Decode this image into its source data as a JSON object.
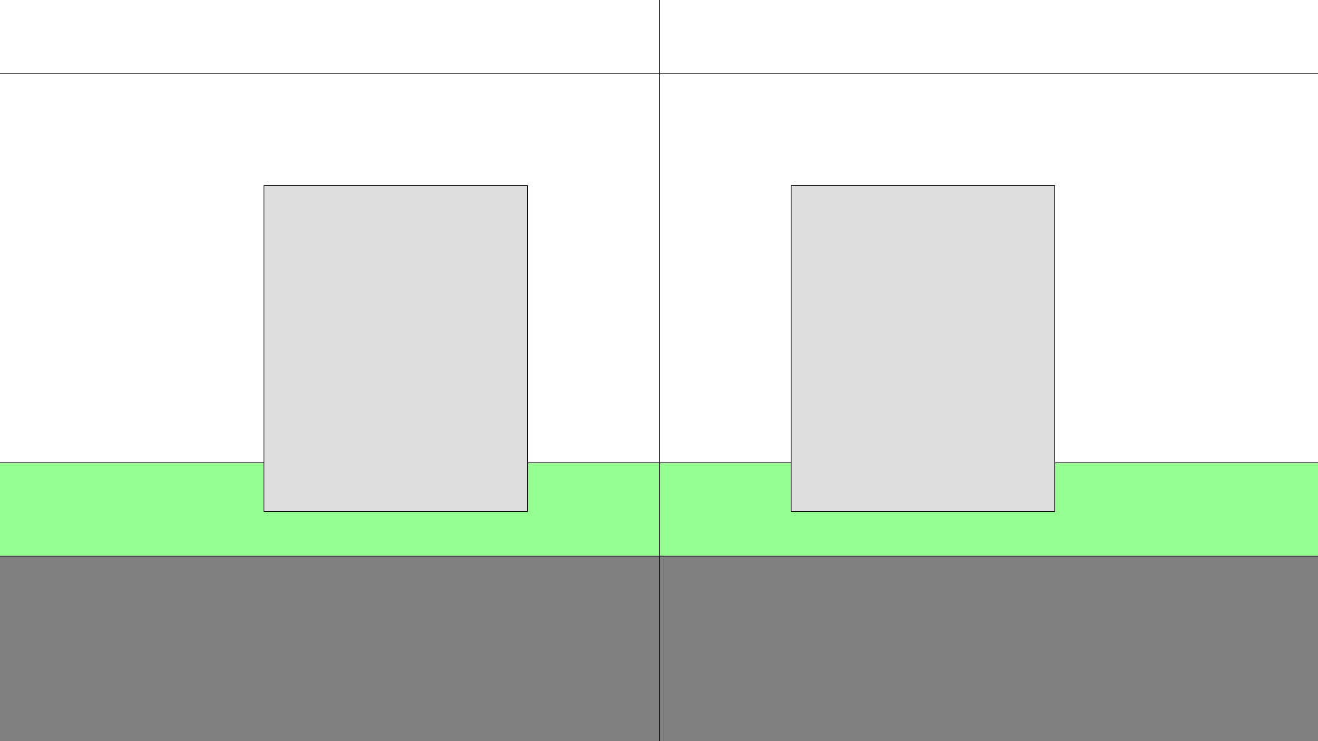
{
  "colors": {
    "background": "#ffffff",
    "lines": "#000000",
    "green_band": "#95ff91",
    "gray_band": "#808080",
    "block_fill": "#dddddd"
  },
  "panes": [
    {
      "id": "left"
    },
    {
      "id": "right"
    }
  ]
}
